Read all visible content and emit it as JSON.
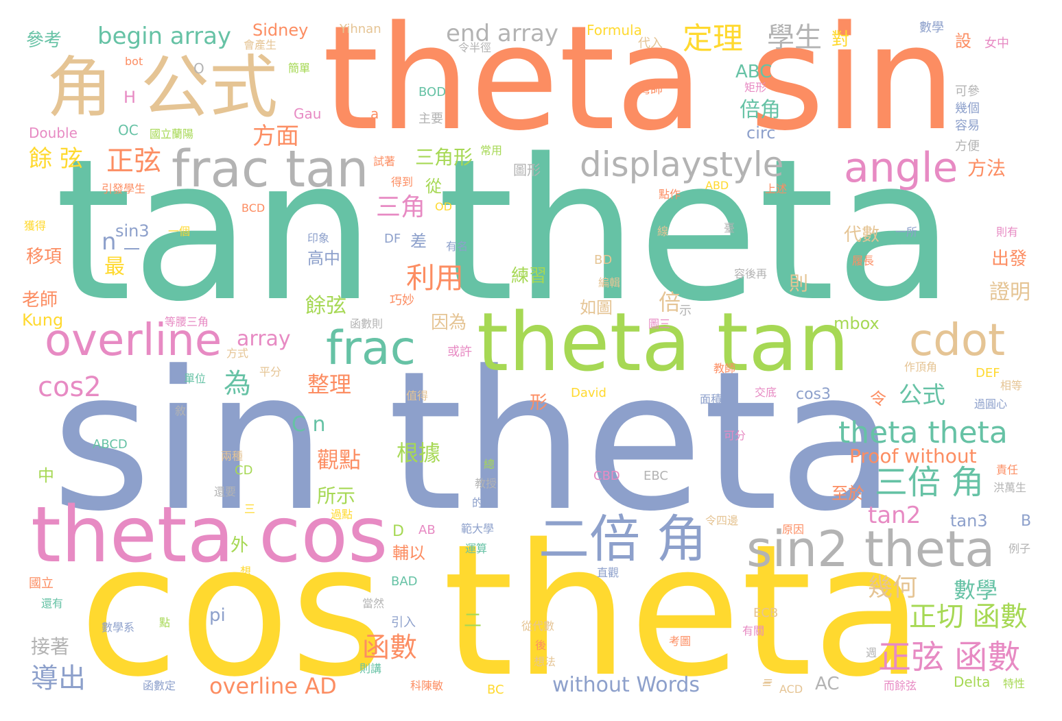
{
  "colors": {
    "orange": "#fc8d62",
    "green": "#66c2a5",
    "blue": "#8da0cb",
    "pink": "#e78ac3",
    "lime": "#a6d854",
    "yellow": "#ffd92f",
    "tan": "#e5c494",
    "gray": "#b3b3b3"
  },
  "words": [
    "tan theta",
    "sin theta",
    "cos theta",
    "theta sin",
    "theta tan",
    "theta cos",
    "frac tan",
    "displaystyle",
    "角",
    "公式",
    "overline",
    "frac",
    "angle",
    "cdot",
    "二倍 角",
    "sin2 theta",
    "theta theta",
    "三倍 角",
    "正弦 函數",
    "正切 函數",
    "函數",
    "定理",
    "學生",
    "begin array",
    "end array",
    "cos2",
    "overline AD",
    "without Words",
    "Proof without",
    "tan2",
    "tan3",
    "cos3",
    "sin3",
    "array",
    "mbox",
    "C n",
    "ABC",
    "倍角",
    "circ",
    "方面",
    "餘 弦",
    "正弦",
    "利用",
    "三角",
    "三角形",
    "為",
    "整理",
    "觀點",
    "根據",
    "所示",
    "幾何",
    "數學",
    "導出",
    "接著",
    "pi",
    "參考",
    "Sidney",
    "Yihnan",
    "Formula",
    "數學",
    "女中",
    "設",
    "對",
    "可參",
    "幾個",
    "容易",
    "方便",
    "方法",
    "出發",
    "證明",
    "則",
    "代數",
    "練習",
    "倍",
    "示",
    "如圖",
    "餘弦",
    "高中",
    "差",
    "最",
    "移項",
    "老師",
    "Kung",
    "Double",
    "OC",
    "國立蘭陽",
    "Gau",
    "BOD",
    "主要",
    "H",
    "O",
    "簡單",
    "令半徑",
    "代入",
    "矩形",
    "灣師",
    "因為",
    "或許",
    "函數則",
    "巧妙",
    "等腰三角",
    "方式",
    "平分",
    "單位",
    "值得",
    "David",
    "DEF",
    "相等",
    "過圓心",
    "作頂角",
    "教師",
    "交底",
    "面積",
    "圖三",
    "令",
    "公式",
    "形",
    "中",
    "ABCD",
    "CD",
    "兩種",
    "還要",
    "三",
    "過點",
    "教授",
    "的圖",
    "總",
    "CBD",
    "EBC",
    "責任",
    "洪萬生",
    "至於",
    "例子",
    "原因",
    "令四邊",
    "範大學",
    "運算",
    "外",
    "想",
    "輔以",
    "D",
    "AB",
    "BAD",
    "國立",
    "還有",
    "數學系",
    "點",
    "當然",
    "引入",
    "二",
    "從代數",
    "後",
    "想法",
    "有關",
    "考圖",
    "函數定",
    "則講",
    "科陳敏",
    "BC",
    "ACD",
    "ECB",
    "而餘弦",
    "Delta",
    "特性",
    "AC",
    "B",
    "直觀",
    "=",
    "a",
    "n",
    "一",
    "bot",
    "試著",
    "得到",
    "從",
    "常用",
    "圖形",
    "引發學生",
    "BCD",
    "OD",
    "ABD",
    "上述",
    "點作",
    "線",
    "臺",
    "一個",
    "印象",
    "DF",
    "有名",
    "一所",
    "則有",
    "履長",
    "容後再",
    "BD",
    "編輯",
    "會產生",
    "=",
    "獲得",
    "敘",
    "可分",
    "週"
  ]
}
